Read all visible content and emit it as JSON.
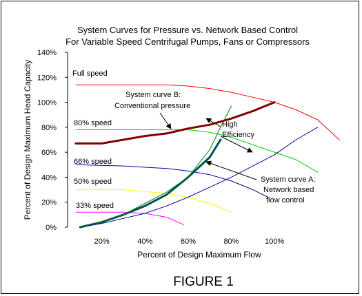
{
  "chart_data": {
    "type": "line",
    "title": "System Curves for Pressure vs. Network Based Control",
    "subtitle": "For Variable Speed Centrifugal Pumps, Fans or Compressors",
    "xlabel": "Percent of Design Maximum Flow",
    "ylabel": "Percent of Design Maximum Head Capacity",
    "caption": "FIGURE 1",
    "x_tick_labels": [
      "20%",
      "40%",
      "60%",
      "80%",
      "100%"
    ],
    "x_ticks": [
      20,
      40,
      60,
      80,
      100
    ],
    "y_tick_labels": [
      "0%",
      "20%",
      "40%",
      "60%",
      "80%",
      "100%",
      "120%",
      "140%"
    ],
    "y_ticks": [
      0,
      20,
      40,
      60,
      80,
      100,
      120,
      140
    ],
    "xlim": [
      0,
      130
    ],
    "ylim": [
      0,
      140
    ],
    "grid": false,
    "series": [
      {
        "name": "Full speed",
        "color": "#ff0000",
        "width": 1,
        "x": [
          8,
          50,
          60,
          70,
          80,
          90,
          100,
          110,
          120,
          130
        ],
        "y": [
          114,
          114,
          113,
          111,
          108,
          104,
          100,
          94,
          86,
          70
        ]
      },
      {
        "name": "80% speed",
        "color": "#00cc00",
        "width": 1,
        "x": [
          8,
          60,
          70,
          80,
          90,
          100,
          110,
          120
        ],
        "y": [
          78,
          78,
          76,
          72,
          66,
          60,
          54,
          44
        ]
      },
      {
        "name": "66% speed",
        "color": "#000099",
        "width": 1,
        "x": [
          8,
          30,
          50,
          60,
          70,
          80,
          90,
          97
        ],
        "y": [
          50,
          49,
          47,
          45,
          42,
          37,
          30,
          24
        ]
      },
      {
        "name": "50% speed",
        "color": "#ffff00",
        "width": 1,
        "x": [
          8,
          30,
          50,
          60,
          70,
          80
        ],
        "y": [
          30,
          30,
          27,
          24,
          19,
          12
        ]
      },
      {
        "name": "33% speed",
        "color": "#ff00ff",
        "width": 1,
        "x": [
          8,
          30,
          40,
          50,
          58
        ],
        "y": [
          12,
          12,
          11,
          8,
          2
        ]
      },
      {
        "name": "System curve B: Conventional pressure",
        "color": "#800000",
        "width": 3,
        "x": [
          8,
          20,
          30,
          40,
          50,
          60,
          70,
          80,
          90,
          100
        ],
        "y": [
          67,
          67,
          70,
          73,
          75,
          79,
          82,
          87,
          93,
          100
        ]
      },
      {
        "name": "High Efficiency",
        "color": "#005050",
        "width": 3,
        "x": [
          10,
          20,
          30,
          40,
          50,
          60,
          70,
          75
        ],
        "y": [
          0,
          4,
          10,
          17,
          26,
          40,
          56,
          70
        ]
      },
      {
        "name": "System curve A: Network based flow control",
        "color": "#000099",
        "width": 1,
        "x": [
          10,
          20,
          30,
          40,
          50,
          60,
          70,
          80,
          90,
          100,
          110,
          120
        ],
        "y": [
          0,
          3,
          7,
          11,
          17,
          24,
          32,
          40,
          49,
          58,
          70,
          80
        ]
      },
      {
        "name": "",
        "color": "#008000",
        "width": 1,
        "x": [
          10,
          20,
          30,
          40,
          50,
          60,
          70,
          75,
          80
        ],
        "y": [
          0,
          4,
          10,
          19,
          28,
          40,
          62,
          80,
          97
        ]
      }
    ],
    "labels": {
      "full_speed": "Full speed",
      "speed_80": "80% speed",
      "speed_66": "66% speed",
      "speed_50": "50% speed",
      "speed_33": "33% speed",
      "curve_b_line1": "System curve B:",
      "curve_b_line2": "Conventional pressure",
      "high_eff_line1": "High",
      "high_eff_line2": "Efficiency",
      "curve_a_line1": "System curve A:",
      "curve_a_line2": "Network based",
      "curve_a_line3": "flow control"
    }
  }
}
